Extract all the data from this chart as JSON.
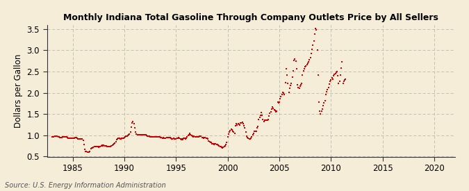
{
  "title": "Monthly Indiana Total Gasoline Through Company Outlets Price by All Sellers",
  "ylabel": "Dollars per Gallon",
  "source_text": "Source: U.S. Energy Information Administration",
  "background_color": "#f5edd8",
  "dot_color": "#cc0000",
  "grid_color": "#bbbbaa",
  "xlim": [
    1982.5,
    2022
  ],
  "ylim": [
    0.5,
    3.6
  ],
  "xticks": [
    1985,
    1990,
    1995,
    2000,
    2005,
    2010,
    2015,
    2020
  ],
  "yticks": [
    0.5,
    1.0,
    1.5,
    2.0,
    2.5,
    3.0,
    3.5
  ],
  "data": [
    [
      1983.0,
      0.96
    ],
    [
      1983.083,
      0.97
    ],
    [
      1983.167,
      0.97
    ],
    [
      1983.25,
      0.98
    ],
    [
      1983.333,
      0.99
    ],
    [
      1983.417,
      0.99
    ],
    [
      1983.5,
      0.98
    ],
    [
      1983.583,
      0.97
    ],
    [
      1983.667,
      0.96
    ],
    [
      1983.75,
      0.95
    ],
    [
      1983.833,
      0.95
    ],
    [
      1983.917,
      0.95
    ],
    [
      1984.0,
      0.96
    ],
    [
      1984.083,
      0.97
    ],
    [
      1984.167,
      0.97
    ],
    [
      1984.25,
      0.97
    ],
    [
      1984.333,
      0.97
    ],
    [
      1984.417,
      0.97
    ],
    [
      1984.5,
      0.95
    ],
    [
      1984.583,
      0.94
    ],
    [
      1984.667,
      0.93
    ],
    [
      1984.75,
      0.93
    ],
    [
      1984.833,
      0.93
    ],
    [
      1984.917,
      0.93
    ],
    [
      1985.0,
      0.93
    ],
    [
      1985.083,
      0.94
    ],
    [
      1985.167,
      0.94
    ],
    [
      1985.25,
      0.95
    ],
    [
      1985.333,
      0.95
    ],
    [
      1985.417,
      0.94
    ],
    [
      1985.5,
      0.92
    ],
    [
      1985.583,
      0.92
    ],
    [
      1985.667,
      0.92
    ],
    [
      1985.75,
      0.92
    ],
    [
      1985.833,
      0.91
    ],
    [
      1985.917,
      0.91
    ],
    [
      1986.0,
      0.89
    ],
    [
      1986.083,
      0.78
    ],
    [
      1986.167,
      0.67
    ],
    [
      1986.25,
      0.63
    ],
    [
      1986.333,
      0.62
    ],
    [
      1986.417,
      0.61
    ],
    [
      1986.5,
      0.6
    ],
    [
      1986.583,
      0.6
    ],
    [
      1986.667,
      0.62
    ],
    [
      1986.75,
      0.68
    ],
    [
      1986.833,
      0.71
    ],
    [
      1986.917,
      0.7
    ],
    [
      1987.0,
      0.72
    ],
    [
      1987.083,
      0.73
    ],
    [
      1987.167,
      0.73
    ],
    [
      1987.25,
      0.74
    ],
    [
      1987.333,
      0.74
    ],
    [
      1987.417,
      0.73
    ],
    [
      1987.5,
      0.72
    ],
    [
      1987.583,
      0.73
    ],
    [
      1987.667,
      0.73
    ],
    [
      1987.75,
      0.75
    ],
    [
      1987.833,
      0.77
    ],
    [
      1987.917,
      0.76
    ],
    [
      1988.0,
      0.77
    ],
    [
      1988.083,
      0.76
    ],
    [
      1988.167,
      0.75
    ],
    [
      1988.25,
      0.75
    ],
    [
      1988.333,
      0.74
    ],
    [
      1988.417,
      0.74
    ],
    [
      1988.5,
      0.73
    ],
    [
      1988.583,
      0.73
    ],
    [
      1988.667,
      0.73
    ],
    [
      1988.75,
      0.76
    ],
    [
      1988.833,
      0.77
    ],
    [
      1988.917,
      0.78
    ],
    [
      1989.0,
      0.8
    ],
    [
      1989.083,
      0.82
    ],
    [
      1989.167,
      0.85
    ],
    [
      1989.25,
      0.9
    ],
    [
      1989.333,
      0.92
    ],
    [
      1989.417,
      0.93
    ],
    [
      1989.5,
      0.93
    ],
    [
      1989.583,
      0.92
    ],
    [
      1989.667,
      0.92
    ],
    [
      1989.75,
      0.93
    ],
    [
      1989.833,
      0.94
    ],
    [
      1989.917,
      0.93
    ],
    [
      1990.0,
      0.95
    ],
    [
      1990.083,
      0.97
    ],
    [
      1990.167,
      0.98
    ],
    [
      1990.25,
      0.99
    ],
    [
      1990.333,
      1.0
    ],
    [
      1990.417,
      1.01
    ],
    [
      1990.5,
      1.03
    ],
    [
      1990.583,
      1.08
    ],
    [
      1990.667,
      1.19
    ],
    [
      1990.75,
      1.3
    ],
    [
      1990.833,
      1.32
    ],
    [
      1990.917,
      1.28
    ],
    [
      1991.0,
      1.17
    ],
    [
      1991.083,
      1.08
    ],
    [
      1991.167,
      1.03
    ],
    [
      1991.25,
      1.02
    ],
    [
      1991.333,
      1.02
    ],
    [
      1991.417,
      1.02
    ],
    [
      1991.5,
      1.02
    ],
    [
      1991.583,
      1.02
    ],
    [
      1991.667,
      1.02
    ],
    [
      1991.75,
      1.02
    ],
    [
      1991.833,
      1.02
    ],
    [
      1991.917,
      1.01
    ],
    [
      1992.0,
      1.02
    ],
    [
      1992.083,
      1.01
    ],
    [
      1992.167,
      1.0
    ],
    [
      1992.25,
      0.99
    ],
    [
      1992.333,
      0.98
    ],
    [
      1992.417,
      0.98
    ],
    [
      1992.5,
      0.97
    ],
    [
      1992.583,
      0.97
    ],
    [
      1992.667,
      0.96
    ],
    [
      1992.75,
      0.97
    ],
    [
      1992.833,
      0.97
    ],
    [
      1992.917,
      0.96
    ],
    [
      1993.0,
      0.96
    ],
    [
      1993.083,
      0.96
    ],
    [
      1993.167,
      0.96
    ],
    [
      1993.25,
      0.96
    ],
    [
      1993.333,
      0.96
    ],
    [
      1993.417,
      0.96
    ],
    [
      1993.5,
      0.95
    ],
    [
      1993.583,
      0.95
    ],
    [
      1993.667,
      0.94
    ],
    [
      1993.75,
      0.95
    ],
    [
      1993.833,
      0.94
    ],
    [
      1993.917,
      0.93
    ],
    [
      1994.0,
      0.94
    ],
    [
      1994.083,
      0.95
    ],
    [
      1994.167,
      0.95
    ],
    [
      1994.25,
      0.95
    ],
    [
      1994.333,
      0.95
    ],
    [
      1994.417,
      0.95
    ],
    [
      1994.5,
      0.93
    ],
    [
      1994.583,
      0.92
    ],
    [
      1994.667,
      0.92
    ],
    [
      1994.75,
      0.93
    ],
    [
      1994.833,
      0.92
    ],
    [
      1994.917,
      0.91
    ],
    [
      1995.0,
      0.92
    ],
    [
      1995.083,
      0.93
    ],
    [
      1995.167,
      0.93
    ],
    [
      1995.25,
      0.95
    ],
    [
      1995.333,
      0.94
    ],
    [
      1995.417,
      0.92
    ],
    [
      1995.5,
      0.9
    ],
    [
      1995.583,
      0.91
    ],
    [
      1995.667,
      0.9
    ],
    [
      1995.75,
      0.93
    ],
    [
      1995.833,
      0.93
    ],
    [
      1995.917,
      0.92
    ],
    [
      1996.0,
      0.94
    ],
    [
      1996.083,
      0.97
    ],
    [
      1996.167,
      1.0
    ],
    [
      1996.25,
      1.02
    ],
    [
      1996.333,
      1.04
    ],
    [
      1996.417,
      1.02
    ],
    [
      1996.5,
      1.0
    ],
    [
      1996.583,
      0.99
    ],
    [
      1996.667,
      0.97
    ],
    [
      1996.75,
      0.98
    ],
    [
      1996.833,
      0.97
    ],
    [
      1996.917,
      0.96
    ],
    [
      1997.0,
      0.97
    ],
    [
      1997.083,
      0.97
    ],
    [
      1997.167,
      0.97
    ],
    [
      1997.25,
      0.98
    ],
    [
      1997.333,
      0.99
    ],
    [
      1997.417,
      0.98
    ],
    [
      1997.5,
      0.95
    ],
    [
      1997.583,
      0.95
    ],
    [
      1997.667,
      0.94
    ],
    [
      1997.75,
      0.95
    ],
    [
      1997.833,
      0.95
    ],
    [
      1997.917,
      0.94
    ],
    [
      1998.0,
      0.93
    ],
    [
      1998.083,
      0.91
    ],
    [
      1998.167,
      0.87
    ],
    [
      1998.25,
      0.85
    ],
    [
      1998.333,
      0.84
    ],
    [
      1998.417,
      0.83
    ],
    [
      1998.5,
      0.81
    ],
    [
      1998.583,
      0.8
    ],
    [
      1998.667,
      0.79
    ],
    [
      1998.75,
      0.81
    ],
    [
      1998.833,
      0.81
    ],
    [
      1998.917,
      0.79
    ],
    [
      1999.0,
      0.78
    ],
    [
      1999.083,
      0.77
    ],
    [
      1999.167,
      0.76
    ],
    [
      1999.25,
      0.74
    ],
    [
      1999.333,
      0.73
    ],
    [
      1999.417,
      0.72
    ],
    [
      1999.5,
      0.71
    ],
    [
      1999.583,
      0.72
    ],
    [
      1999.667,
      0.74
    ],
    [
      1999.75,
      0.76
    ],
    [
      1999.833,
      0.79
    ],
    [
      1999.917,
      0.83
    ],
    [
      2000.0,
      0.96
    ],
    [
      2000.083,
      1.03
    ],
    [
      2000.167,
      1.08
    ],
    [
      2000.25,
      1.12
    ],
    [
      2000.333,
      1.14
    ],
    [
      2000.417,
      1.13
    ],
    [
      2000.5,
      1.1
    ],
    [
      2000.583,
      1.08
    ],
    [
      2000.667,
      1.05
    ],
    [
      2000.75,
      1.22
    ],
    [
      2000.833,
      1.28
    ],
    [
      2000.917,
      1.25
    ],
    [
      2001.0,
      1.27
    ],
    [
      2001.083,
      1.26
    ],
    [
      2001.167,
      1.24
    ],
    [
      2001.25,
      1.29
    ],
    [
      2001.333,
      1.3
    ],
    [
      2001.417,
      1.31
    ],
    [
      2001.5,
      1.27
    ],
    [
      2001.583,
      1.22
    ],
    [
      2001.667,
      1.18
    ],
    [
      2001.75,
      1.08
    ],
    [
      2001.833,
      0.99
    ],
    [
      2001.917,
      0.95
    ],
    [
      2002.0,
      0.93
    ],
    [
      2002.083,
      0.92
    ],
    [
      2002.167,
      0.91
    ],
    [
      2002.25,
      0.94
    ],
    [
      2002.333,
      0.97
    ],
    [
      2002.417,
      1.01
    ],
    [
      2002.5,
      1.05
    ],
    [
      2002.583,
      1.09
    ],
    [
      2002.667,
      1.09
    ],
    [
      2002.75,
      1.1
    ],
    [
      2002.833,
      1.17
    ],
    [
      2002.917,
      1.21
    ],
    [
      2003.0,
      1.38
    ],
    [
      2003.083,
      1.42
    ],
    [
      2003.167,
      1.48
    ],
    [
      2003.25,
      1.54
    ],
    [
      2003.333,
      1.47
    ],
    [
      2003.417,
      1.38
    ],
    [
      2003.5,
      1.33
    ],
    [
      2003.583,
      1.35
    ],
    [
      2003.667,
      1.35
    ],
    [
      2003.75,
      1.36
    ],
    [
      2003.833,
      1.36
    ],
    [
      2003.917,
      1.38
    ],
    [
      2004.0,
      1.45
    ],
    [
      2004.083,
      1.52
    ],
    [
      2004.167,
      1.56
    ],
    [
      2004.25,
      1.62
    ],
    [
      2004.333,
      1.66
    ],
    [
      2004.417,
      1.64
    ],
    [
      2004.5,
      1.6
    ],
    [
      2004.583,
      1.58
    ],
    [
      2004.667,
      1.56
    ],
    [
      2004.75,
      1.57
    ],
    [
      2004.833,
      1.78
    ],
    [
      2004.917,
      1.76
    ],
    [
      2005.0,
      1.79
    ],
    [
      2005.083,
      1.87
    ],
    [
      2005.167,
      1.91
    ],
    [
      2005.25,
      1.97
    ],
    [
      2005.333,
      2.01
    ],
    [
      2005.417,
      1.99
    ],
    [
      2005.5,
      1.96
    ],
    [
      2005.583,
      2.24
    ],
    [
      2005.667,
      2.56
    ],
    [
      2005.75,
      2.42
    ],
    [
      2005.833,
      2.22
    ],
    [
      2005.917,
      2.01
    ],
    [
      2006.0,
      2.11
    ],
    [
      2006.083,
      2.17
    ],
    [
      2006.167,
      2.22
    ],
    [
      2006.25,
      2.37
    ],
    [
      2006.333,
      2.52
    ],
    [
      2006.417,
      2.77
    ],
    [
      2006.5,
      2.8
    ],
    [
      2006.583,
      2.74
    ],
    [
      2006.667,
      2.56
    ],
    [
      2006.75,
      2.19
    ],
    [
      2006.833,
      2.12
    ],
    [
      2006.917,
      2.11
    ],
    [
      2007.0,
      2.16
    ],
    [
      2007.083,
      2.19
    ],
    [
      2007.167,
      2.23
    ],
    [
      2007.25,
      2.42
    ],
    [
      2007.333,
      2.52
    ],
    [
      2007.417,
      2.57
    ],
    [
      2007.5,
      2.62
    ],
    [
      2007.583,
      2.64
    ],
    [
      2007.667,
      2.67
    ],
    [
      2007.75,
      2.7
    ],
    [
      2007.833,
      2.73
    ],
    [
      2007.917,
      2.78
    ],
    [
      2008.0,
      2.82
    ],
    [
      2008.083,
      2.92
    ],
    [
      2008.167,
      3.02
    ],
    [
      2008.25,
      3.12
    ],
    [
      2008.333,
      3.22
    ],
    [
      2008.417,
      3.38
    ],
    [
      2008.5,
      3.52
    ],
    [
      2008.583,
      3.48
    ],
    [
      2008.667,
      3.0
    ],
    [
      2008.75,
      2.42
    ],
    [
      2008.833,
      1.78
    ],
    [
      2008.917,
      1.57
    ],
    [
      2009.0,
      1.5
    ],
    [
      2009.083,
      1.57
    ],
    [
      2009.167,
      1.62
    ],
    [
      2009.25,
      1.7
    ],
    [
      2009.333,
      1.77
    ],
    [
      2009.417,
      1.82
    ],
    [
      2009.5,
      1.97
    ],
    [
      2009.583,
      2.02
    ],
    [
      2009.667,
      2.07
    ],
    [
      2009.75,
      2.12
    ],
    [
      2009.833,
      2.2
    ],
    [
      2009.917,
      2.27
    ],
    [
      2010.0,
      2.3
    ],
    [
      2010.083,
      2.35
    ],
    [
      2010.167,
      2.32
    ],
    [
      2010.25,
      2.41
    ],
    [
      2010.333,
      2.43
    ],
    [
      2010.417,
      2.45
    ],
    [
      2010.5,
      2.48
    ],
    [
      2010.583,
      2.5
    ],
    [
      2010.667,
      2.4
    ],
    [
      2010.75,
      2.22
    ],
    [
      2010.833,
      2.27
    ],
    [
      2010.917,
      2.42
    ],
    [
      2011.0,
      2.58
    ],
    [
      2011.083,
      2.73
    ],
    [
      2011.167,
      2.22
    ],
    [
      2011.25,
      2.28
    ],
    [
      2011.333,
      2.3
    ],
    [
      2011.417,
      2.32
    ]
  ]
}
